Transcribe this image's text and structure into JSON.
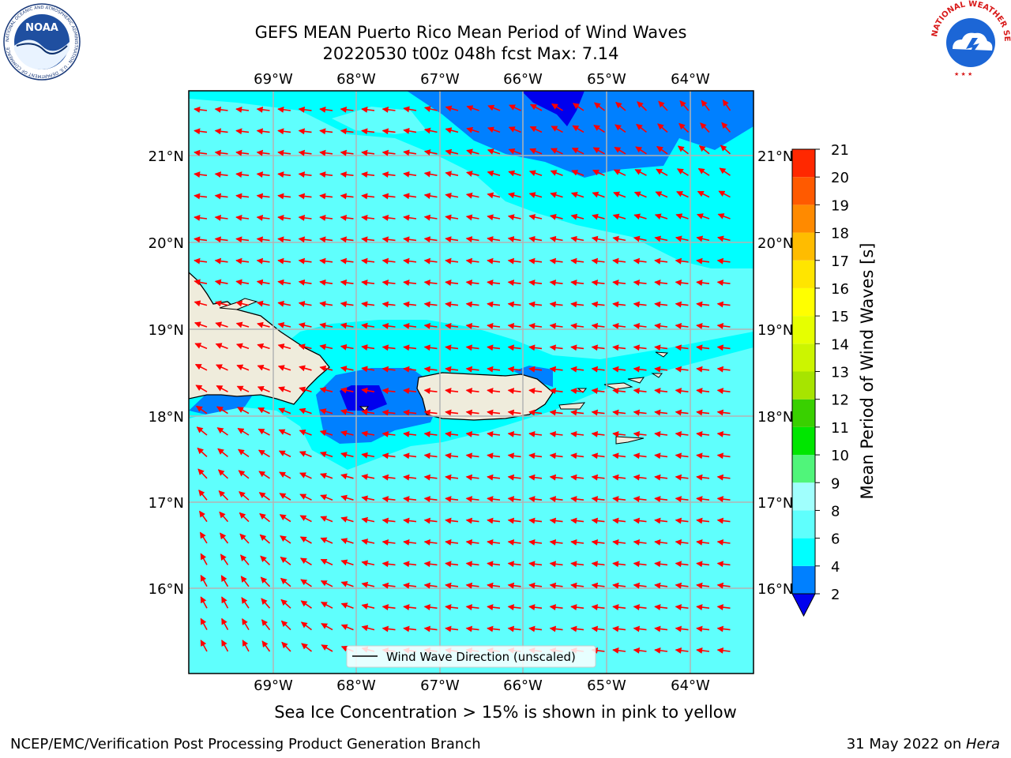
{
  "header": {
    "title_line1": "GEFS MEAN Puerto Rico Mean Period of Wind Waves",
    "title_line2": "20220530 t00z 048h fcst   Max: 7.14"
  },
  "logos": {
    "left": "NOAA",
    "left_ring": "NATIONAL OCEANIC AND ATMOSPHERIC ADMINISTRATION · U.S. DEPARTMENT OF COMMERCE",
    "right_ring": "NATIONAL WEATHER SERVICE"
  },
  "map": {
    "lon_labels": [
      "69°W",
      "68°W",
      "67°W",
      "66°W",
      "65°W",
      "64°W"
    ],
    "lat_labels": [
      "21°N",
      "20°N",
      "19°N",
      "18°N",
      "17°N",
      "16°N"
    ],
    "legend_label": "Wind Wave Direction (unscaled)",
    "colors": {
      "land": "#efecdc",
      "period_2_4": "#0080ff",
      "period_4_6": "#00ffff",
      "period_6_8": "#5ffffd",
      "period_below_2": "#0000ee",
      "arrow": "#ff0000",
      "grid": "#b3b3b3"
    }
  },
  "colorbar": {
    "label": "Mean Period of Wind Waves [s]",
    "ticks": [
      "2",
      "4",
      "6",
      "8",
      "9",
      "10",
      "11",
      "12",
      "13",
      "14",
      "15",
      "16",
      "17",
      "18",
      "19",
      "20",
      "21"
    ],
    "colors": [
      "#0080ff",
      "#00ffff",
      "#5ffffd",
      "#a0fffd",
      "#50f57a",
      "#00e600",
      "#39d000",
      "#a7e400",
      "#ccf500",
      "#e6ff00",
      "#ffff00",
      "#ffe500",
      "#ffbc00",
      "#ff8a00",
      "#ff5a00",
      "#ff2800",
      "#ff0000"
    ],
    "extend_color": "#0000ee"
  },
  "footer": {
    "note": "Sea Ice Concentration > 15% is shown in pink to yellow",
    "credit": "NCEP/EMC/Verification Post Processing Product Generation Branch",
    "date": "31 May 2022 on ",
    "host": "Hera"
  }
}
